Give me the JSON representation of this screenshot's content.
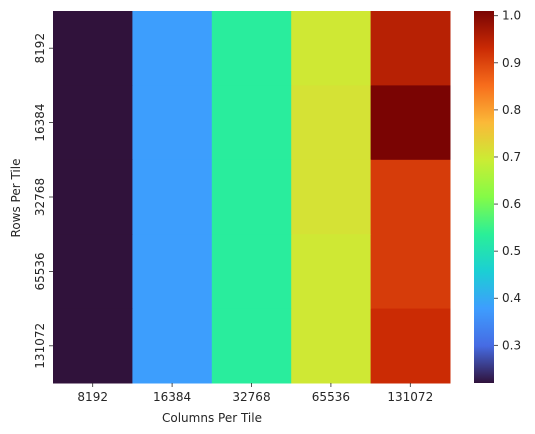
{
  "chart_data": {
    "type": "heatmap",
    "title": "",
    "xlabel": "Columns Per Tile",
    "ylabel": "Rows Per Tile",
    "x_categories": [
      "8192",
      "16384",
      "32768",
      "65536",
      "131072"
    ],
    "y_categories": [
      "8192",
      "16384",
      "32768",
      "65536",
      "131072"
    ],
    "values": [
      [
        0.22,
        0.38,
        0.53,
        0.7,
        0.95
      ],
      [
        0.22,
        0.38,
        0.53,
        0.71,
        1.01
      ],
      [
        0.22,
        0.38,
        0.53,
        0.71,
        0.91
      ],
      [
        0.22,
        0.38,
        0.53,
        0.7,
        0.91
      ],
      [
        0.22,
        0.38,
        0.53,
        0.7,
        0.93
      ]
    ],
    "colormap": "turbo",
    "colorbar": {
      "range": [
        0.22,
        1.01
      ],
      "ticks": [
        0.3,
        0.4,
        0.5,
        0.6,
        0.7,
        0.8,
        0.9,
        1.0
      ],
      "tick_labels": [
        "0.3",
        "0.4",
        "0.5",
        "0.6",
        "0.7",
        "0.8",
        "0.9",
        "1.0"
      ]
    },
    "grid": false
  }
}
